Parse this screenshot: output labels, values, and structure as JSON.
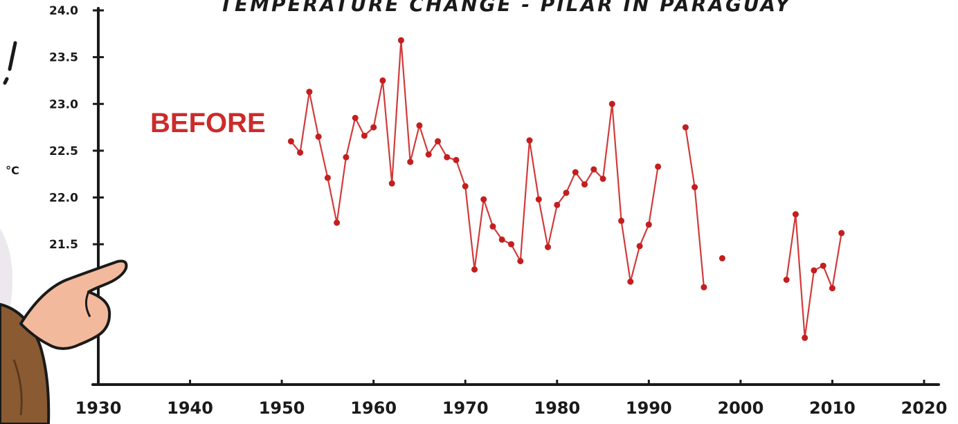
{
  "chart_data": {
    "type": "line",
    "title": "TEMPERATURE CHANGE - PILAR IN PARAGUAY",
    "xlabel": "",
    "ylabel": "°C",
    "xlim": [
      1930,
      2020
    ],
    "ylim": [
      20.0,
      24.0
    ],
    "x_ticks": [
      1930,
      1940,
      1950,
      1960,
      1970,
      1980,
      1990,
      2000,
      2010,
      2020
    ],
    "y_ticks": [
      {
        "value": 21.5,
        "label": "21.5"
      },
      {
        "value": 22.0,
        "label": "22.0"
      },
      {
        "value": 22.5,
        "label": "22.5"
      },
      {
        "value": 23.0,
        "label": "23.0"
      },
      {
        "value": 23.5,
        "label": "23.5"
      },
      {
        "value": 24.0,
        "label": "24.0"
      }
    ],
    "annotation": "BEFORE",
    "grid": false,
    "line_color": "#d23a3a",
    "marker_color": "#c41e1e",
    "series": [
      {
        "segments": [
          [
            [
              1951,
              22.6
            ],
            [
              1952,
              22.48
            ],
            [
              1953,
              23.13
            ],
            [
              1954,
              22.65
            ],
            [
              1955,
              22.21
            ],
            [
              1956,
              21.73
            ],
            [
              1957,
              22.43
            ],
            [
              1958,
              22.85
            ],
            [
              1959,
              22.66
            ],
            [
              1960,
              22.75
            ],
            [
              1961,
              23.25
            ],
            [
              1962,
              22.15
            ],
            [
              1963,
              23.68
            ],
            [
              1964,
              22.38
            ],
            [
              1965,
              22.77
            ],
            [
              1966,
              22.46
            ],
            [
              1967,
              22.6
            ],
            [
              1968,
              22.43
            ],
            [
              1969,
              22.4
            ],
            [
              1970,
              22.12
            ],
            [
              1971,
              21.23
            ],
            [
              1972,
              21.98
            ],
            [
              1973,
              21.69
            ],
            [
              1974,
              21.55
            ],
            [
              1975,
              21.5
            ],
            [
              1976,
              21.32
            ],
            [
              1977,
              22.61
            ],
            [
              1978,
              21.98
            ],
            [
              1979,
              21.47
            ],
            [
              1980,
              21.92
            ],
            [
              1981,
              22.05
            ],
            [
              1982,
              22.27
            ],
            [
              1983,
              22.14
            ],
            [
              1984,
              22.3
            ],
            [
              1985,
              22.2
            ],
            [
              1986,
              23.0
            ],
            [
              1987,
              21.75
            ],
            [
              1988,
              21.1
            ],
            [
              1989,
              21.48
            ],
            [
              1990,
              21.71
            ],
            [
              1991,
              22.33
            ]
          ],
          [
            [
              1994,
              22.75
            ],
            [
              1995,
              22.11
            ],
            [
              1996,
              21.04
            ]
          ],
          [
            [
              1998,
              21.35
            ]
          ],
          [
            [
              2005,
              21.12
            ],
            [
              2006,
              21.82
            ],
            [
              2007,
              20.5
            ],
            [
              2008,
              21.22
            ],
            [
              2009,
              21.27
            ],
            [
              2010,
              21.03
            ],
            [
              2011,
              21.62
            ]
          ]
        ]
      }
    ]
  }
}
